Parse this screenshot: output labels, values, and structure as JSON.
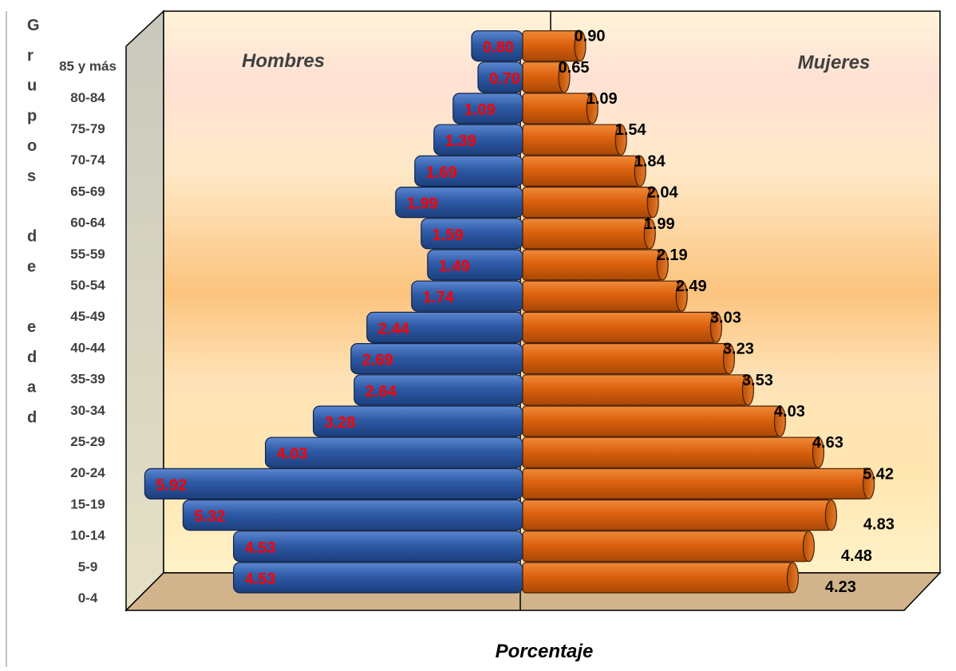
{
  "chart_data": {
    "type": "bar",
    "subtype": "population-pyramid",
    "title": "",
    "xlabel": "Porcentaje",
    "ylabel": "Grupos de edad",
    "categories": [
      "0-4",
      "5-9",
      "10-14",
      "15-19",
      "20-24",
      "25-29",
      "30-34",
      "35-39",
      "40-44",
      "45-49",
      "50-54",
      "55-59",
      "60-64",
      "65-69",
      "70-74",
      "75-79",
      "80-84",
      "85 y más"
    ],
    "series": [
      {
        "name": "Hombres",
        "color": "#2e5aa6",
        "values": [
          4.53,
          4.53,
          5.32,
          5.92,
          4.03,
          3.28,
          2.64,
          2.69,
          2.44,
          1.74,
          1.49,
          1.59,
          1.99,
          1.69,
          1.39,
          1.09,
          0.7,
          0.8
        ]
      },
      {
        "name": "Mujeres",
        "color": "#e0640c",
        "values": [
          4.23,
          4.48,
          4.83,
          5.42,
          4.63,
          4.03,
          3.53,
          3.23,
          3.03,
          2.49,
          2.19,
          1.99,
          2.04,
          1.84,
          1.54,
          1.09,
          0.65,
          0.9
        ]
      }
    ],
    "hombres_labels": [
      "4.53",
      "4.53",
      "5.32",
      "5.92",
      "4.03",
      "3.28",
      "2.64",
      "2.69",
      "2.44",
      "1.74",
      "1.49",
      "1.59",
      "1.99",
      "1.69",
      "1.39",
      "1.09",
      "0.70",
      "0.80"
    ],
    "mujeres_labels": [
      "4.23",
      "4.48",
      "4.83",
      "5.42",
      "4.63",
      "4.03",
      "3.53",
      "3.23",
      "3.03",
      "2.49",
      "2.19",
      "1.99",
      "2.04",
      "1.84",
      "1.54",
      "1.09",
      "0.65",
      "0.90"
    ],
    "hombres_label_color": "#ff0000",
    "mujeres_label_color": "#000000",
    "legend": "none",
    "grid": false
  }
}
